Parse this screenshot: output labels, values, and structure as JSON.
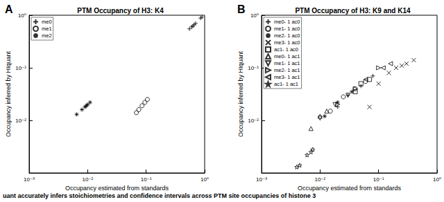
{
  "caption": "uant accurately infers stoichiometries and confidence intervals across PTM site occupancies of histone 3",
  "chart_data": [
    {
      "type": "scatter",
      "label": "A",
      "title": "PTM Occupancy of H3: K4",
      "x_label": "Occupancy estimated from standards",
      "y_label": "Occupancy inferred by HIquant",
      "log": true,
      "grid": false,
      "legend": "upper left",
      "xlim": [
        0.001,
        1
      ],
      "ylim": [
        0.001,
        1
      ],
      "xticks": [
        {
          "value": 0.001,
          "label": "10⁻³"
        },
        {
          "value": 0.01,
          "label": "10⁻²"
        },
        {
          "value": 0.1,
          "label": "10⁻¹"
        },
        {
          "value": 1,
          "label": "10⁰"
        }
      ],
      "yticks": [
        {
          "value": 0.01,
          "label": "10⁻²"
        },
        {
          "value": 0.1,
          "label": "10⁻¹"
        },
        {
          "value": 1,
          "label": "10⁰"
        }
      ],
      "series": [
        {
          "name": "me0",
          "marker": "plus",
          "color": "#000000",
          "x": [
            0.55,
            0.6,
            0.63,
            0.66,
            0.7,
            0.85,
            0.9
          ],
          "y": [
            0.55,
            0.6,
            0.62,
            0.66,
            0.7,
            0.88,
            0.92
          ]
        },
        {
          "name": "me1",
          "marker": "circle",
          "color": "#000000",
          "x": [
            0.068,
            0.075,
            0.085,
            0.095,
            0.105
          ],
          "y": [
            0.014,
            0.016,
            0.019,
            0.022,
            0.025
          ]
        },
        {
          "name": "me2",
          "marker": "asterisk",
          "color": "#000000",
          "x": [
            0.0065,
            0.008,
            0.009,
            0.0095,
            0.01,
            0.011
          ],
          "y": [
            0.013,
            0.016,
            0.018,
            0.019,
            0.02,
            0.022
          ]
        }
      ]
    },
    {
      "type": "scatter",
      "label": "B",
      "title": "PTM Occupancy of H3: K9 and K14",
      "x_label": "Occupancy estimated from standards",
      "y_label": "Occupancy inferred by HIquant",
      "log": true,
      "grid": false,
      "legend": "upper left",
      "xlim": [
        0.001,
        1
      ],
      "ylim": [
        0.001,
        1
      ],
      "xticks": [
        {
          "value": 0.001,
          "label": "10⁻³"
        },
        {
          "value": 0.01,
          "label": "10⁻²"
        },
        {
          "value": 0.1,
          "label": "10⁻¹"
        },
        {
          "value": 1,
          "label": "10⁰"
        }
      ],
      "yticks": [
        {
          "value": 0.01,
          "label": "10⁻²"
        },
        {
          "value": 0.1,
          "label": "10⁻¹"
        },
        {
          "value": 1,
          "label": "10⁰"
        }
      ],
      "series": [
        {
          "name": "me0- 1 ac0",
          "marker": "plus",
          "color": "#000000",
          "x": [
            0.02,
            0.03,
            0.05,
            0.08
          ],
          "y": [
            0.018,
            0.03,
            0.045,
            0.07
          ]
        },
        {
          "name": "me1- 1 ac0",
          "marker": "circle",
          "color": "#000000",
          "x": [
            0.015,
            0.025,
            0.04,
            0.06
          ],
          "y": [
            0.015,
            0.028,
            0.04,
            0.055
          ]
        },
        {
          "name": "me2- 1 ac0",
          "marker": "asterisk",
          "color": "#000000",
          "x": [
            0.012,
            0.02,
            0.035
          ],
          "y": [
            0.012,
            0.022,
            0.035
          ]
        },
        {
          "name": "me3- 1 ac0",
          "marker": "x",
          "color": "#000000",
          "x": [
            0.07,
            0.1,
            0.15,
            0.2,
            0.25,
            0.3,
            0.4
          ],
          "y": [
            0.018,
            0.05,
            0.08,
            0.1,
            0.11,
            0.12,
            0.14
          ]
        },
        {
          "name": "ac1- 1 ac0",
          "marker": "square",
          "color": "#000000",
          "x": [
            0.04,
            0.05,
            0.07
          ],
          "y": [
            0.035,
            0.05,
            0.06
          ]
        },
        {
          "name": "me0- 1 ac1",
          "marker": "triangle",
          "color": "#000000",
          "x": [
            0.007,
            0.01,
            0.013
          ],
          "y": [
            0.007,
            0.012,
            0.015
          ]
        },
        {
          "name": "me1- 1 ac1",
          "marker": "triangle-down",
          "color": "#000000",
          "x": [
            0.01,
            0.018,
            0.03
          ],
          "y": [
            0.011,
            0.02,
            0.03
          ]
        },
        {
          "name": "me2- 1 ac1",
          "marker": "triangle-right",
          "color": "#000000",
          "x": [
            0.02,
            0.04,
            0.1
          ],
          "y": [
            0.02,
            0.04,
            0.1
          ]
        },
        {
          "name": "me3- 1 ac1",
          "marker": "triangle-left",
          "color": "#000000",
          "x": [
            0.06,
            0.12,
            0.16
          ],
          "y": [
            0.06,
            0.1,
            0.12
          ]
        },
        {
          "name": "ac1- 1 ac1",
          "marker": "star",
          "color": "#000000",
          "x": [
            0.004,
            0.0045,
            0.006,
            0.007,
            0.0075
          ],
          "y": [
            0.0013,
            0.0014,
            0.0022,
            0.0025,
            0.0028
          ]
        }
      ]
    }
  ]
}
